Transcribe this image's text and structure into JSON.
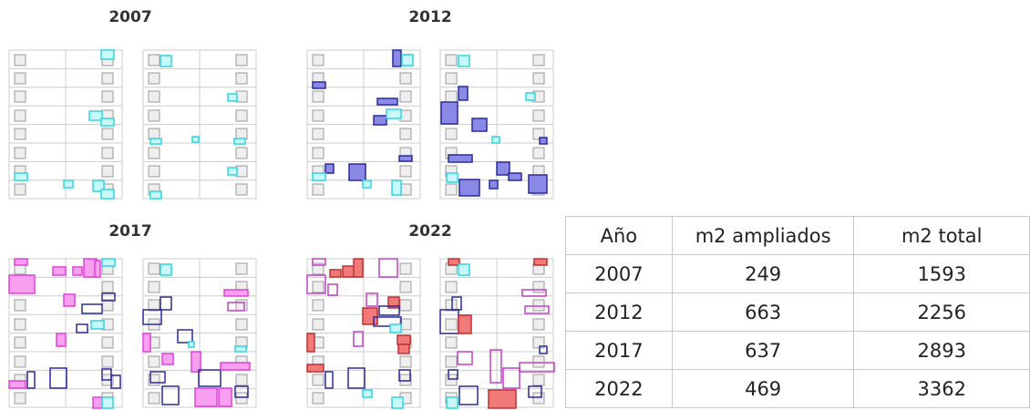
{
  "panels": [
    {
      "title": "2007"
    },
    {
      "title": "2012"
    },
    {
      "title": "2017"
    },
    {
      "title": "2022"
    }
  ],
  "table": {
    "headers": [
      "Año",
      "m2 ampliados",
      "m2 total"
    ],
    "rows": [
      [
        2007,
        249,
        1593
      ],
      [
        2012,
        663,
        2256
      ],
      [
        2017,
        637,
        2893
      ],
      [
        2022,
        469,
        3362
      ]
    ]
  }
}
